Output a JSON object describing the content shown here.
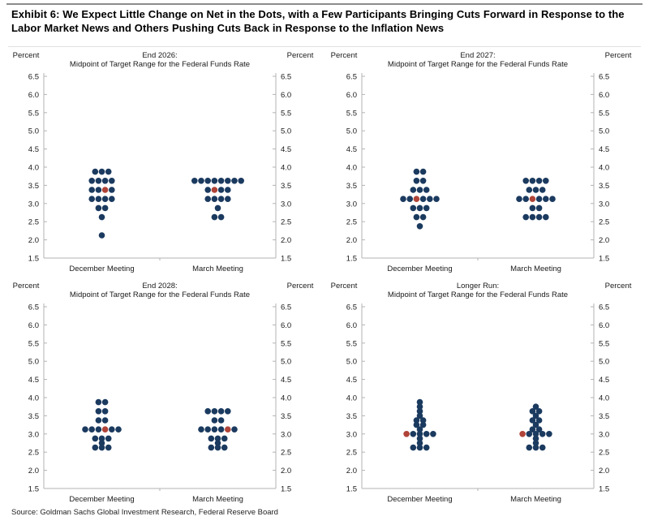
{
  "header": {
    "title": "Exhibit 6: We Expect Little Change on Net in the Dots, with a Few Participants Bringing Cuts Forward in Response to the Labor Market News and Others Pushing Cuts Back in Response to the Inflation News"
  },
  "footer": {
    "source": "Source: Goldman Sachs Global Investment Research, Federal Reserve Board"
  },
  "colors": {
    "fomc_dot": "#1b3a5f",
    "gs_forecast_dot": "#b04438",
    "axis": "#b3b3b3",
    "text": "#1a1a1a"
  },
  "axis": {
    "unit_label": "Percent",
    "min": 1.5,
    "max": 6.5,
    "ticks": [
      "6.5",
      "6.0",
      "5.5",
      "5.0",
      "4.5",
      "4.0",
      "3.5",
      "3.0",
      "2.5",
      "2.0",
      "1.5"
    ]
  },
  "chart_data": [
    {
      "type": "scatter",
      "title": "End 2026:",
      "subtitle": "Midpoint of Target Range for the Federal Funds Rate",
      "ylabel": "Percent",
      "ylim": [
        1.5,
        6.5
      ],
      "categories": [
        "December Meeting",
        "March Meeting"
      ],
      "series": [
        {
          "name": "December Meeting",
          "rows": [
            {
              "rate": 3.875,
              "count": 3,
              "red_index": -1
            },
            {
              "rate": 3.625,
              "count": 4,
              "red_index": -1
            },
            {
              "rate": 3.375,
              "count": 4,
              "red_index": 2
            },
            {
              "rate": 3.125,
              "count": 4,
              "red_index": -1
            },
            {
              "rate": 2.875,
              "count": 2,
              "red_index": -1
            },
            {
              "rate": 2.625,
              "count": 1,
              "red_index": -1
            },
            {
              "rate": 2.125,
              "count": 1,
              "red_index": -1
            }
          ]
        },
        {
          "name": "March Meeting",
          "rows": [
            {
              "rate": 3.625,
              "count": 8,
              "red_index": -1
            },
            {
              "rate": 3.375,
              "count": 4,
              "red_index": 1
            },
            {
              "rate": 3.125,
              "count": 4,
              "red_index": -1
            },
            {
              "rate": 2.875,
              "count": 1,
              "red_index": -1
            },
            {
              "rate": 2.625,
              "count": 2,
              "red_index": -1
            }
          ]
        }
      ]
    },
    {
      "type": "scatter",
      "title": "End 2027:",
      "subtitle": "Midpoint of Target Range for the Federal Funds Rate",
      "ylabel": "Percent",
      "ylim": [
        1.5,
        6.5
      ],
      "categories": [
        "December Meeting",
        "March Meeting"
      ],
      "series": [
        {
          "name": "December Meeting",
          "rows": [
            {
              "rate": 3.875,
              "count": 2,
              "red_index": -1
            },
            {
              "rate": 3.625,
              "count": 2,
              "red_index": -1
            },
            {
              "rate": 3.375,
              "count": 3,
              "red_index": -1
            },
            {
              "rate": 3.125,
              "count": 6,
              "red_index": 2
            },
            {
              "rate": 2.875,
              "count": 3,
              "red_index": -1
            },
            {
              "rate": 2.625,
              "count": 2,
              "red_index": -1
            },
            {
              "rate": 2.375,
              "count": 1,
              "red_index": -1
            }
          ]
        },
        {
          "name": "March Meeting",
          "rows": [
            {
              "rate": 3.625,
              "count": 4,
              "red_index": -1
            },
            {
              "rate": 3.375,
              "count": 3,
              "red_index": -1
            },
            {
              "rate": 3.125,
              "count": 6,
              "red_index": 2
            },
            {
              "rate": 2.875,
              "count": 2,
              "red_index": -1
            },
            {
              "rate": 2.625,
              "count": 4,
              "red_index": -1
            }
          ]
        }
      ]
    },
    {
      "type": "scatter",
      "title": "End 2028:",
      "subtitle": "Midpoint of Target Range for the Federal Funds Rate",
      "ylabel": "Percent",
      "ylim": [
        1.5,
        6.5
      ],
      "categories": [
        "December Meeting",
        "March Meeting"
      ],
      "series": [
        {
          "name": "December Meeting",
          "rows": [
            {
              "rate": 3.875,
              "count": 2,
              "red_index": -1
            },
            {
              "rate": 3.625,
              "count": 2,
              "red_index": -1
            },
            {
              "rate": 3.375,
              "count": 2,
              "red_index": -1
            },
            {
              "rate": 3.125,
              "count": 6,
              "red_index": 3
            },
            {
              "rate": 2.875,
              "count": 3,
              "red_index": -1
            },
            {
              "rate": 2.75,
              "count": 1,
              "red_index": -1
            },
            {
              "rate": 2.625,
              "count": 3,
              "red_index": -1
            }
          ]
        },
        {
          "name": "March Meeting",
          "rows": [
            {
              "rate": 3.625,
              "count": 4,
              "red_index": -1
            },
            {
              "rate": 3.375,
              "count": 2,
              "red_index": -1
            },
            {
              "rate": 3.125,
              "count": 6,
              "red_index": 4
            },
            {
              "rate": 2.875,
              "count": 3,
              "red_index": -1
            },
            {
              "rate": 2.75,
              "count": 1,
              "red_index": -1
            },
            {
              "rate": 2.625,
              "count": 3,
              "red_index": -1
            }
          ]
        }
      ]
    },
    {
      "type": "scatter",
      "title": "Longer Run:",
      "subtitle": "Midpoint of Target Range for the Federal Funds Rate",
      "ylabel": "Percent",
      "ylim": [
        1.5,
        6.5
      ],
      "categories": [
        "December Meeting",
        "March Meeting"
      ],
      "series": [
        {
          "name": "December Meeting",
          "rows": [
            {
              "rate": 3.875,
              "count": 1,
              "red_index": -1
            },
            {
              "rate": 3.75,
              "count": 1,
              "red_index": -1
            },
            {
              "rate": 3.625,
              "count": 1,
              "red_index": -1
            },
            {
              "rate": 3.5,
              "count": 1,
              "red_index": -1
            },
            {
              "rate": 3.375,
              "count": 2,
              "red_index": -1
            },
            {
              "rate": 3.25,
              "count": 2,
              "red_index": -1
            },
            {
              "rate": 3.125,
              "count": 1,
              "red_index": -1
            },
            {
              "rate": 3.0,
              "count": 5,
              "red_index": 0
            },
            {
              "rate": 2.875,
              "count": 1,
              "red_index": -1
            },
            {
              "rate": 2.75,
              "count": 1,
              "red_index": -1
            },
            {
              "rate": 2.625,
              "count": 3,
              "red_index": -1
            }
          ]
        },
        {
          "name": "March Meeting",
          "rows": [
            {
              "rate": 3.75,
              "count": 1,
              "red_index": -1
            },
            {
              "rate": 3.625,
              "count": 2,
              "red_index": -1
            },
            {
              "rate": 3.5,
              "count": 1,
              "red_index": -1
            },
            {
              "rate": 3.375,
              "count": 2,
              "red_index": -1
            },
            {
              "rate": 3.25,
              "count": 1,
              "red_index": -1
            },
            {
              "rate": 3.125,
              "count": 2,
              "red_index": -1
            },
            {
              "rate": 3.0,
              "count": 5,
              "red_index": 0
            },
            {
              "rate": 2.875,
              "count": 1,
              "red_index": -1
            },
            {
              "rate": 2.75,
              "count": 1,
              "red_index": -1
            },
            {
              "rate": 2.625,
              "count": 3,
              "red_index": -1
            }
          ]
        }
      ]
    }
  ]
}
